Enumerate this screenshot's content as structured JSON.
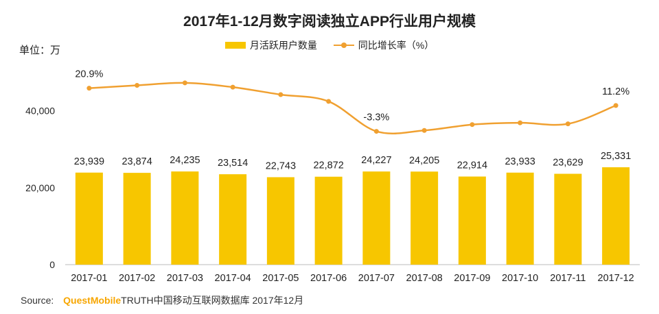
{
  "page": {
    "title": "2017年1-12月数字阅读独立APP行业用户规模",
    "unit_label": "单位：万",
    "source_prefix": "Source:",
    "source_brand": "QuestMobile",
    "source_text": "TRUTH中国移动互联网数据库 2017年12月"
  },
  "colors": {
    "bar": "#F7C600",
    "line": "#F0A030",
    "axis": "#BBBBBB"
  },
  "chart_data": {
    "type": "bar",
    "title": "2017年1-12月数字阅读独立APP行业用户规模",
    "categories": [
      "2017-01",
      "2017-02",
      "2017-03",
      "2017-04",
      "2017-05",
      "2017-06",
      "2017-07",
      "2017-08",
      "2017-09",
      "2017-10",
      "2017-11",
      "2017-12"
    ],
    "series": [
      {
        "name": "月活跃用户数量",
        "type": "bar",
        "values": [
          23939,
          23874,
          24235,
          23514,
          22743,
          22872,
          24227,
          24205,
          22914,
          23933,
          23629,
          25331
        ],
        "labels": [
          "23,939",
          "23,874",
          "24,235",
          "23,514",
          "22,743",
          "22,872",
          "24,227",
          "24,205",
          "22,914",
          "23,933",
          "23,629",
          "25,331"
        ]
      },
      {
        "name": "同比增长率（%）",
        "type": "line",
        "values": [
          20.9,
          22.5,
          23.9,
          21.5,
          17.3,
          13.5,
          -3.3,
          -2.8,
          0.5,
          1.5,
          0.9,
          11.2
        ],
        "labels": [
          "20.9%",
          "",
          "",
          "",
          "",
          "",
          "-3.3%",
          "",
          "",
          "",
          "",
          "11.2%"
        ]
      }
    ],
    "yticks": [
      0,
      20000,
      40000
    ],
    "ytick_labels": [
      "0",
      "20,000",
      "40,000"
    ],
    "ylim": [
      0,
      51000
    ],
    "xlabel": "",
    "ylabel": "单位：万",
    "legend": "top-center"
  }
}
